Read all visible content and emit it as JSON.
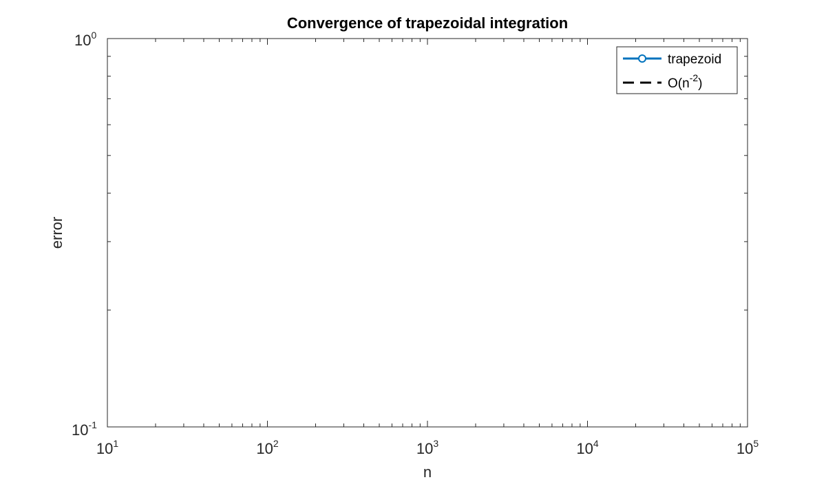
{
  "chart_data": {
    "type": "line",
    "title": "Convergence of trapezoidal integration",
    "xlabel": "n",
    "ylabel": "error",
    "xscale": "log",
    "yscale": "log",
    "xlim": [
      10,
      100000
    ],
    "ylim": [
      0.1,
      1
    ],
    "x_tick_labels": [
      {
        "base": "10",
        "exp": "1"
      },
      {
        "base": "10",
        "exp": "2"
      },
      {
        "base": "10",
        "exp": "3"
      },
      {
        "base": "10",
        "exp": "4"
      },
      {
        "base": "10",
        "exp": "5"
      }
    ],
    "y_tick_labels": [
      {
        "base": "10",
        "exp": "-1"
      },
      {
        "base": "10",
        "exp": "0"
      }
    ],
    "grid": false,
    "legend_position": "top-right",
    "series": [
      {
        "name": "trapezoid",
        "color": "#0072BD",
        "style": "solid",
        "marker": "circle",
        "points": []
      },
      {
        "name": "O(n-2)",
        "label_base": "O(n",
        "label_exp": "-2",
        "label_close": ")",
        "color": "#000000",
        "style": "dashed",
        "points": []
      }
    ]
  }
}
